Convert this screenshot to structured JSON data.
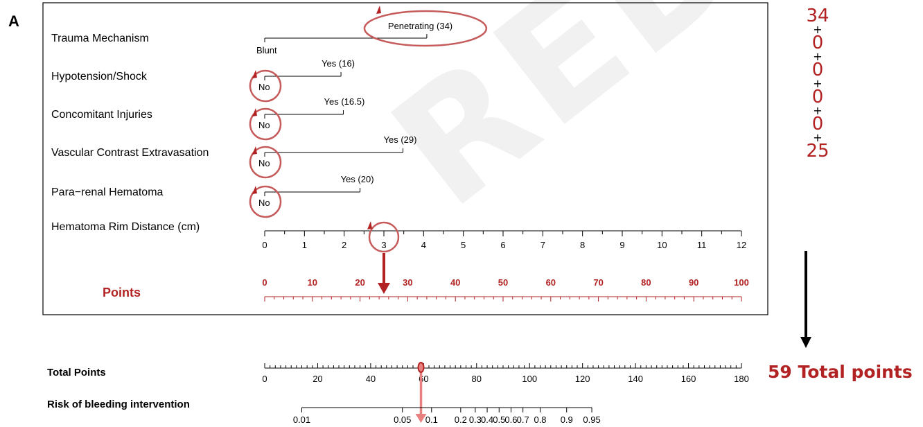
{
  "panel_label": "A",
  "watermark": "REDACTED",
  "colors": {
    "accent": "#b22222",
    "axis": "#000000",
    "highlight_fill": "#e88080"
  },
  "chart_data": {
    "type": "nomogram",
    "variables": [
      {
        "name": "Trauma Mechanism",
        "levels": [
          {
            "label": "Blunt",
            "points": 0
          },
          {
            "label": "Penetrating (34)",
            "points": 34
          }
        ],
        "selected": "Penetrating (34)"
      },
      {
        "name": "Hypotension/Shock",
        "levels": [
          {
            "label": "No",
            "points": 0
          },
          {
            "label": "Yes (16)",
            "points": 16
          }
        ],
        "selected": "No"
      },
      {
        "name": "Concomitant Injuries",
        "levels": [
          {
            "label": "No",
            "points": 0
          },
          {
            "label": "Yes (16.5)",
            "points": 16.5
          }
        ],
        "selected": "No"
      },
      {
        "name": "Vascular Contrast Extravasation",
        "levels": [
          {
            "label": "No",
            "points": 0
          },
          {
            "label": "Yes (29)",
            "points": 29
          }
        ],
        "selected": "No"
      },
      {
        "name": "Para−renal Hematoma",
        "levels": [
          {
            "label": "No",
            "points": 0
          },
          {
            "label": "Yes (20)",
            "points": 20
          }
        ],
        "selected": "No"
      }
    ],
    "rim_distance": {
      "name": "Hematoma Rim Distance (cm)",
      "ticks": [
        "0",
        "1",
        "2",
        "3",
        "4",
        "5",
        "6",
        "7",
        "8",
        "9",
        "10",
        "11",
        "12"
      ],
      "max_cm": 12,
      "max_points": 100,
      "selected_cm": 3,
      "selected_points": 25
    },
    "points_axis": {
      "label": "Points",
      "ticks": [
        "0",
        "10",
        "20",
        "30",
        "40",
        "50",
        "60",
        "70",
        "80",
        "90",
        "100"
      ]
    },
    "total_points_axis": {
      "label": "Total Points",
      "ticks": [
        "0",
        "20",
        "40",
        "60",
        "80",
        "100",
        "120",
        "140",
        "160",
        "180"
      ],
      "range": [
        0,
        180
      ],
      "selected": 59
    },
    "risk_axis": {
      "label": "Risk of bleeding intervention",
      "ticks": [
        {
          "label": "0.01",
          "at_total": 14
        },
        {
          "label": "0.05",
          "at_total": 52
        },
        {
          "label": "0.1",
          "at_total": 63
        },
        {
          "label": "0.2",
          "at_total": 74
        },
        {
          "label": "0.3",
          "at_total": 79.5
        },
        {
          "label": "0.4",
          "at_total": 84
        },
        {
          "label": "0.5",
          "at_total": 88.5
        },
        {
          "label": "0.6",
          "at_total": 93
        },
        {
          "label": "0.7",
          "at_total": 97.5
        },
        {
          "label": "0.8",
          "at_total": 104
        },
        {
          "label": "0.9",
          "at_total": 114
        },
        {
          "label": "0.95",
          "at_total": 123.5
        }
      ]
    },
    "sum_terms": [
      "34",
      "0",
      "0",
      "0",
      "0",
      "25"
    ],
    "sum_operator": "+",
    "total_text": "59 Total points"
  }
}
